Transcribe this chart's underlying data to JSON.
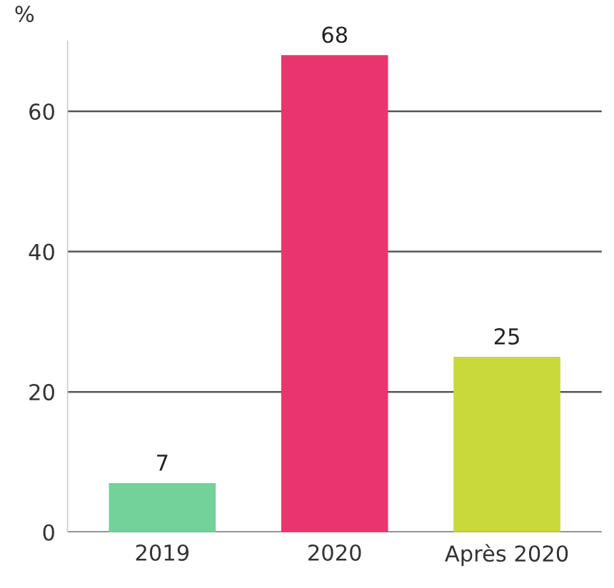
{
  "chart_data": {
    "type": "bar",
    "ylabel": "%",
    "categories": [
      "2019",
      "2020",
      "Après 2020"
    ],
    "values": [
      7,
      68,
      25
    ],
    "colors": [
      "#72d29a",
      "#e9356f",
      "#c8da3b"
    ],
    "yticks": [
      0,
      20,
      40,
      60
    ],
    "ylim": [
      0,
      70
    ],
    "grid": "y",
    "data_labels": true
  }
}
